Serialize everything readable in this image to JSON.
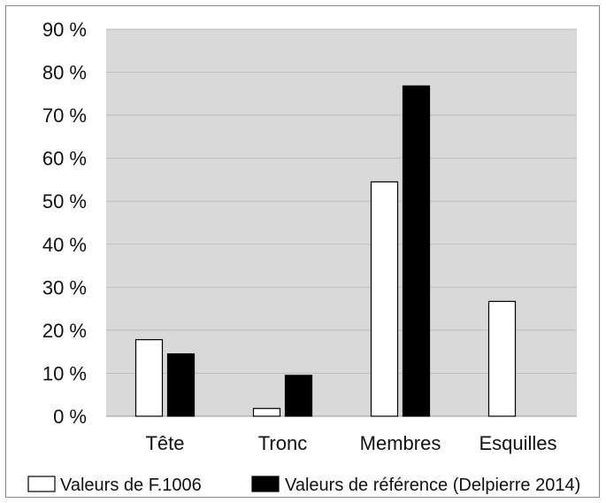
{
  "chart_data": {
    "type": "bar",
    "categories": [
      "Tête",
      "Tronc",
      "Membres",
      "Esquilles"
    ],
    "series": [
      {
        "name": "Valeurs de F.1006",
        "values": [
          17.8,
          1.8,
          54.5,
          26.7
        ],
        "color": "#ffffff"
      },
      {
        "name": "Valeurs de référence (Delpierre 2014)",
        "values": [
          14.5,
          9.5,
          76.8,
          null
        ],
        "color": "#000000"
      }
    ],
    "y_ticks": [
      "0 %",
      "10 %",
      "20 %",
      "30 %",
      "40 %",
      "50 %",
      "60 %",
      "70 %",
      "80 %",
      "90 %"
    ],
    "ylim": [
      0,
      90
    ],
    "grid": true,
    "plot_background": "#d9d9d9",
    "legend_position": "bottom"
  }
}
